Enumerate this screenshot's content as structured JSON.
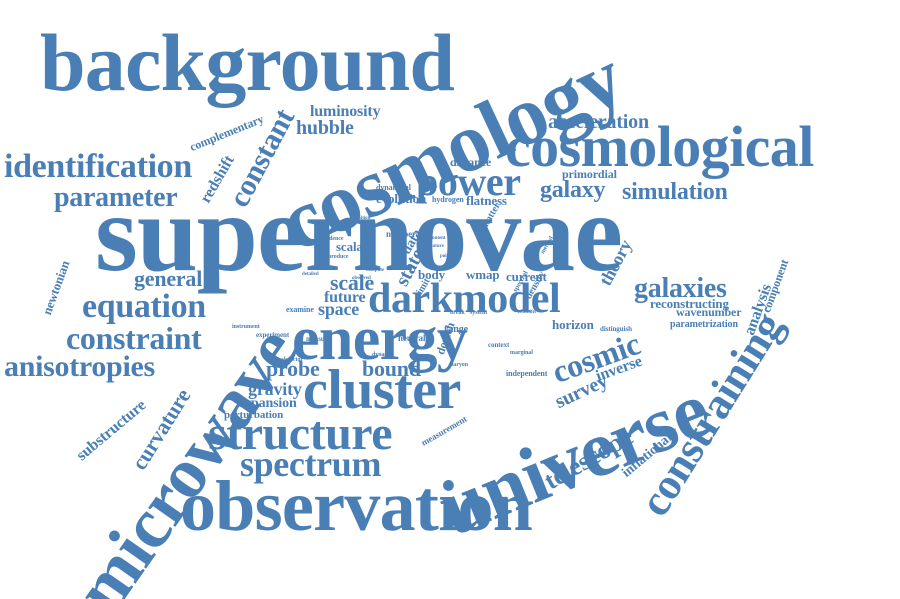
{
  "colors": {
    "word": "#4a7fb5",
    "background": "#ffffff"
  },
  "words": [
    "supernovae",
    "cosmology",
    "background",
    "cosmological",
    "universe",
    "observation",
    "microwave",
    "energy",
    "cluster",
    "constraining",
    "structure",
    "darkmodel",
    "spectrum",
    "identification",
    "power",
    "parameter",
    "equation",
    "constraint",
    "anisotropies",
    "galaxies",
    "galaxy",
    "simulation",
    "cosmic",
    "telescope",
    "constant",
    "redshift",
    "hubble",
    "luminosity",
    "acceleration",
    "complementary",
    "general",
    "scale",
    "state",
    "future",
    "space",
    "probe",
    "bound",
    "gravity",
    "expansion",
    "perturbation",
    "curvature",
    "substructure",
    "newtonian",
    "theory",
    "analysis",
    "component",
    "reconstructing",
    "parametrization",
    "wavenumber",
    "inflationary",
    "survey",
    "inverse",
    "horizon",
    "wmap",
    "current",
    "distance",
    "evolution",
    "flatness",
    "hydrogen",
    "primordial",
    "dynamical",
    "matter",
    "data",
    "body",
    "range",
    "neutral",
    "dovich",
    "scalar",
    "number",
    "density",
    "spectral",
    "independent",
    "measurement",
    "distinguish",
    "context",
    "marginal",
    "examine",
    "experiment",
    "instrument",
    "measure",
    "scalefactor",
    "dynamic",
    "evidence",
    "result",
    "transition",
    "produce",
    "baryon",
    "system",
    "break",
    "method",
    "nature",
    "content",
    "point",
    "redshifts",
    "detailed",
    "observed",
    "compute",
    "limit"
  ]
}
